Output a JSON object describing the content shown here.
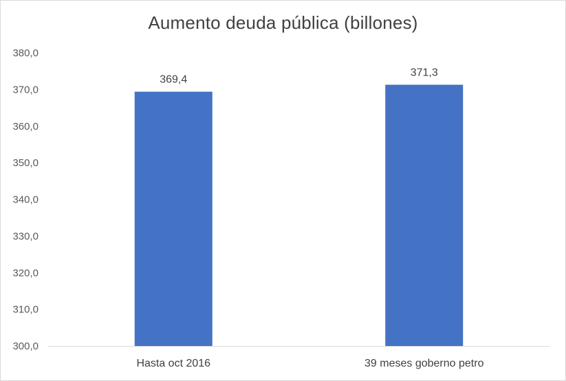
{
  "chart_data": {
    "type": "bar",
    "title": "Aumento deuda pública (billones)",
    "xlabel": "",
    "ylabel": "",
    "categories": [
      "Hasta oct 2016",
      "39 meses goberno petro"
    ],
    "values": [
      369.4,
      371.3
    ],
    "data_labels": [
      "369,4",
      "371,3"
    ],
    "ylim": [
      300,
      380
    ],
    "yticks": [
      300,
      310,
      320,
      330,
      340,
      350,
      360,
      370,
      380
    ],
    "ytick_labels": [
      "300,0",
      "310,0",
      "320,0",
      "330,0",
      "340,0",
      "350,0",
      "360,0",
      "370,0",
      "380,0"
    ],
    "grid": false,
    "legend": "none",
    "bar_color": "#4472C4"
  }
}
